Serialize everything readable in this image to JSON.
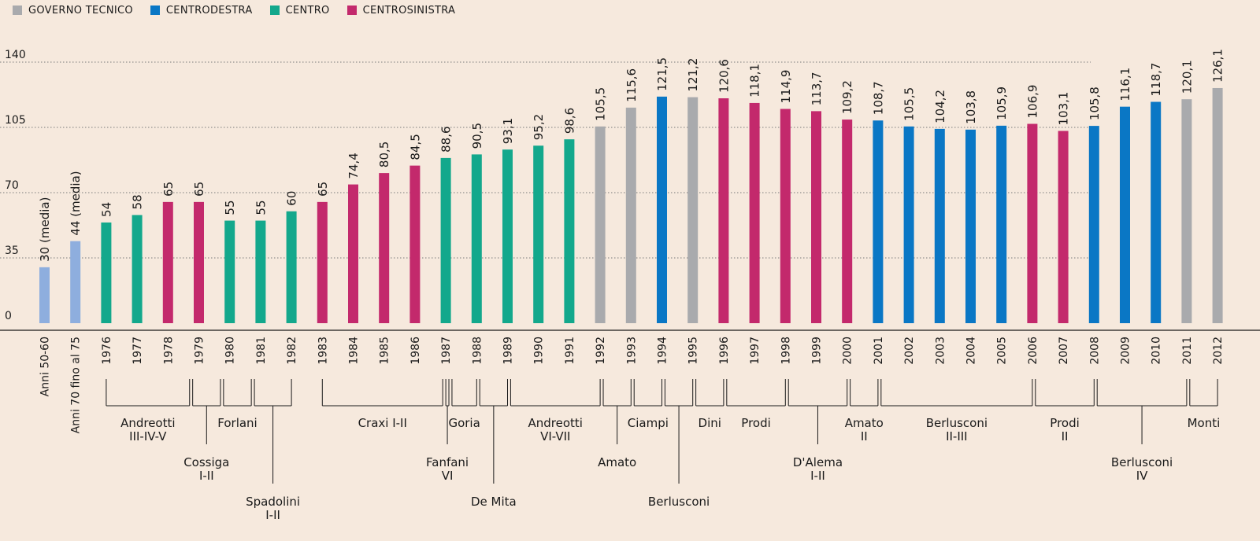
{
  "legend": [
    {
      "label": "GOVERNO TECNICO",
      "color": "#a9aaad"
    },
    {
      "label": "CENTRODESTRA",
      "color": "#0a77c5"
    },
    {
      "label": "CENTRO",
      "color": "#13a88c"
    },
    {
      "label": "CENTROSINISTRA",
      "color": "#c3296c"
    }
  ],
  "colors": {
    "tecnico": "#a9aaad",
    "destra": "#0a77c5",
    "centro": "#13a88c",
    "sinistra": "#c3296c",
    "media": "#8eaede"
  },
  "chart_data": {
    "type": "bar",
    "ylim": [
      0,
      140
    ],
    "yticks": [
      "0",
      "35",
      "70",
      "105",
      "140"
    ],
    "grid": true,
    "categories": [
      "Anni 50-60",
      "Anni 70 fino al 75",
      "1976",
      "1977",
      "1978",
      "1979",
      "1980",
      "1981",
      "1982",
      "1983",
      "1984",
      "1985",
      "1986",
      "1987",
      "1988",
      "1989",
      "1990",
      "1991",
      "1992",
      "1993",
      "1994",
      "1995",
      "1996",
      "1997",
      "1998",
      "1999",
      "2000",
      "2001",
      "2002",
      "2003",
      "2004",
      "2005",
      "2006",
      "2007",
      "2008",
      "2009",
      "2010",
      "2011",
      "2012"
    ],
    "values": [
      30,
      44,
      54,
      58,
      65,
      65,
      55,
      55,
      60,
      65,
      74.4,
      80.5,
      84.5,
      88.6,
      90.5,
      93.1,
      95.2,
      98.6,
      105.5,
      115.6,
      121.5,
      121.2,
      120.6,
      118.1,
      114.9,
      113.7,
      109.2,
      108.7,
      105.5,
      104.2,
      103.8,
      105.9,
      106.9,
      103.1,
      105.8,
      116.1,
      118.7,
      120.1,
      126.1
    ],
    "value_labels": [
      "30 (media)",
      "44 (media)",
      "54",
      "58",
      "65",
      "65",
      "55",
      "55",
      "60",
      "65",
      "74,4",
      "80,5",
      "84,5",
      "88,6",
      "90,5",
      "93,1",
      "95,2",
      "98,6",
      "105,5",
      "115,6",
      "121,5",
      "121,2",
      "120,6",
      "118,1",
      "114,9",
      "113,7",
      "109,2",
      "108,7",
      "105,5",
      "104,2",
      "103,8",
      "105,9",
      "106,9",
      "103,1",
      "105,8",
      "116,1",
      "118,7",
      "120,1",
      "126,1"
    ],
    "groups": [
      "media",
      "media",
      "centro",
      "centro",
      "sinistra",
      "sinistra",
      "centro",
      "centro",
      "centro",
      "sinistra",
      "sinistra",
      "sinistra",
      "sinistra",
      "centro",
      "centro",
      "centro",
      "centro",
      "centro",
      "tecnico",
      "tecnico",
      "destra",
      "tecnico",
      "sinistra",
      "sinistra",
      "sinistra",
      "sinistra",
      "sinistra",
      "destra",
      "destra",
      "destra",
      "destra",
      "destra",
      "sinistra",
      "sinistra",
      "destra",
      "destra",
      "destra",
      "tecnico",
      "tecnico"
    ],
    "governments": [
      {
        "lines": [
          "Andreotti",
          "III-IV-V"
        ],
        "from": 2,
        "to": 4.7,
        "stem": 0
      },
      {
        "lines": [
          "Cossiga",
          "I-II"
        ],
        "from": 4.8,
        "to": 5.7,
        "stem": 1
      },
      {
        "lines": [
          "Forlani"
        ],
        "from": 5.8,
        "to": 6.7,
        "stem": 0
      },
      {
        "lines": [
          "Spadolini",
          "I-II"
        ],
        "from": 6.8,
        "to": 8,
        "stem": 2
      },
      {
        "lines": [
          "Craxi I-II"
        ],
        "from": 9,
        "to": 12.9,
        "stem": 0
      },
      {
        "lines": [
          "Fanfani",
          "VI"
        ],
        "from": 13,
        "to": 13.1,
        "stem": 1
      },
      {
        "lines": [
          "Goria"
        ],
        "from": 13.2,
        "to": 14,
        "stem": 0
      },
      {
        "lines": [
          "De Mita"
        ],
        "from": 14.1,
        "to": 15,
        "stem": 2
      },
      {
        "lines": [
          "Andreotti",
          "VI-VII"
        ],
        "from": 15.1,
        "to": 18,
        "stem": 0
      },
      {
        "lines": [
          "Amato"
        ],
        "from": 18.1,
        "to": 19,
        "stem": 1
      },
      {
        "lines": [
          "Ciampi"
        ],
        "from": 19.1,
        "to": 20,
        "stem": 0
      },
      {
        "lines": [
          "Berlusconi"
        ],
        "from": 20.1,
        "to": 21,
        "stem": 2
      },
      {
        "lines": [
          "Dini"
        ],
        "from": 21.1,
        "to": 22,
        "stem": 0
      },
      {
        "lines": [
          "Prodi"
        ],
        "from": 22.1,
        "to": 24,
        "stem": 0
      },
      {
        "lines": [
          "D'Alema",
          "I-II"
        ],
        "from": 24.1,
        "to": 26,
        "stem": 1
      },
      {
        "lines": [
          "Amato",
          "II"
        ],
        "from": 26.1,
        "to": 27,
        "stem": 0
      },
      {
        "lines": [
          "Berlusconi",
          "II-III"
        ],
        "from": 27.1,
        "to": 32,
        "stem": 0
      },
      {
        "lines": [
          "Prodi",
          "II"
        ],
        "from": 32.1,
        "to": 34,
        "stem": 0
      },
      {
        "lines": [
          "Berlusconi",
          "IV"
        ],
        "from": 34.1,
        "to": 37,
        "stem": 1
      },
      {
        "lines": [
          "Monti"
        ],
        "from": 37.1,
        "to": 38,
        "stem": 0
      }
    ]
  }
}
